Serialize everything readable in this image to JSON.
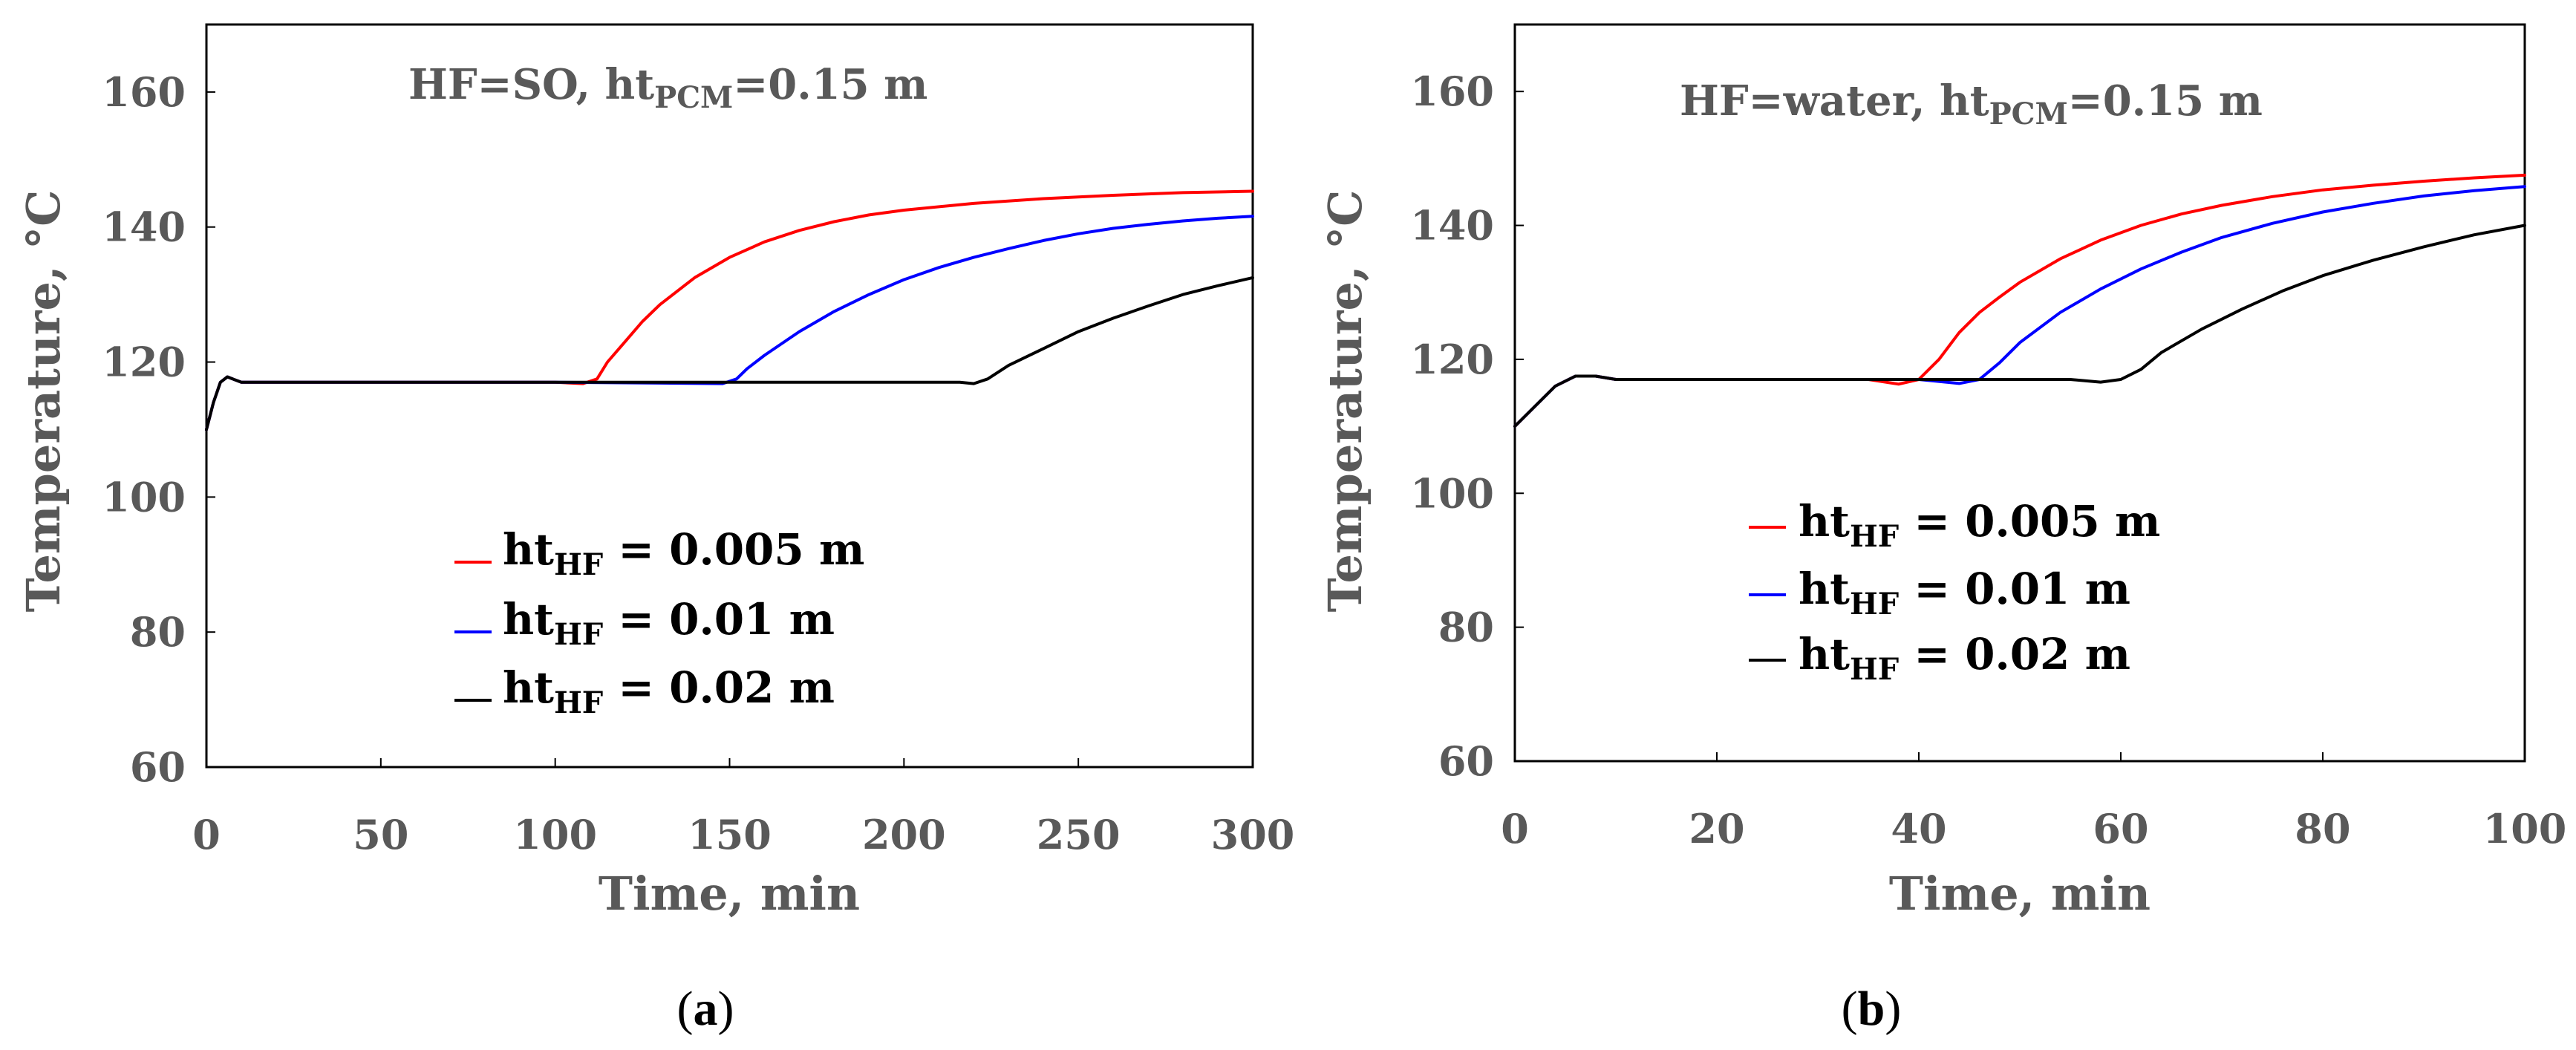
{
  "chart_data": [
    {
      "id": "a",
      "type": "line",
      "caption_open": "(",
      "caption_letter": "a",
      "caption_close": ")",
      "annotation": {
        "prefix": "HF=SO, ht",
        "sub": "PCM",
        "suffix": "=0.15 m"
      },
      "xlabel": "Time, min",
      "ylabel": "Temperature, °C",
      "xlim": [
        0,
        300
      ],
      "ylim": [
        60,
        170
      ],
      "xticks": [
        0,
        50,
        100,
        150,
        200,
        250,
        300
      ],
      "yticks": [
        60,
        80,
        100,
        120,
        140,
        160
      ],
      "legend_position": "center",
      "series": [
        {
          "name": "ht_HF = 0.005 m",
          "label_main": "ht",
          "label_sub": "HF",
          "label_rest": " = 0.005 m",
          "color": "#ff0000",
          "points": [
            [
              0,
              110
            ],
            [
              2,
              114
            ],
            [
              4,
              117
            ],
            [
              6,
              117.8
            ],
            [
              8,
              117.4
            ],
            [
              10,
              117
            ],
            [
              50,
              117
            ],
            [
              100,
              117
            ],
            [
              108,
              116.8
            ],
            [
              112,
              117.5
            ],
            [
              115,
              120
            ],
            [
              120,
              123
            ],
            [
              125,
              126
            ],
            [
              130,
              128.5
            ],
            [
              140,
              132.5
            ],
            [
              150,
              135.5
            ],
            [
              160,
              137.8
            ],
            [
              170,
              139.5
            ],
            [
              180,
              140.8
            ],
            [
              190,
              141.8
            ],
            [
              200,
              142.5
            ],
            [
              220,
              143.5
            ],
            [
              240,
              144.2
            ],
            [
              260,
              144.7
            ],
            [
              280,
              145.1
            ],
            [
              300,
              145.3
            ]
          ]
        },
        {
          "name": "ht_HF = 0.01 m",
          "label_main": "ht",
          "label_sub": "HF",
          "label_rest": " = 0.01 m",
          "color": "#0000ff",
          "points": [
            [
              0,
              110
            ],
            [
              2,
              114
            ],
            [
              4,
              117
            ],
            [
              6,
              117.8
            ],
            [
              8,
              117.4
            ],
            [
              10,
              117
            ],
            [
              50,
              117
            ],
            [
              100,
              117
            ],
            [
              148,
              116.8
            ],
            [
              152,
              117.5
            ],
            [
              155,
              119
            ],
            [
              160,
              121
            ],
            [
              170,
              124.5
            ],
            [
              180,
              127.5
            ],
            [
              190,
              130
            ],
            [
              200,
              132.2
            ],
            [
              210,
              134
            ],
            [
              220,
              135.5
            ],
            [
              230,
              136.8
            ],
            [
              240,
              138
            ],
            [
              250,
              139
            ],
            [
              260,
              139.8
            ],
            [
              270,
              140.4
            ],
            [
              280,
              140.9
            ],
            [
              290,
              141.3
            ],
            [
              300,
              141.6
            ]
          ]
        },
        {
          "name": "ht_HF = 0.02 m",
          "label_main": "ht",
          "label_sub": "HF",
          "label_rest": " = 0.02 m",
          "color": "#000000",
          "points": [
            [
              0,
              110
            ],
            [
              2,
              114
            ],
            [
              4,
              117
            ],
            [
              6,
              117.8
            ],
            [
              8,
              117.4
            ],
            [
              10,
              117
            ],
            [
              50,
              117
            ],
            [
              100,
              117
            ],
            [
              150,
              117
            ],
            [
              200,
              117
            ],
            [
              216,
              117
            ],
            [
              220,
              116.8
            ],
            [
              224,
              117.5
            ],
            [
              230,
              119.5
            ],
            [
              240,
              122
            ],
            [
              250,
              124.5
            ],
            [
              260,
              126.5
            ],
            [
              270,
              128.3
            ],
            [
              280,
              130
            ],
            [
              290,
              131.3
            ],
            [
              300,
              132.5
            ]
          ]
        }
      ]
    },
    {
      "id": "b",
      "type": "line",
      "caption_open": "(",
      "caption_letter": "b",
      "caption_close": ")",
      "annotation": {
        "prefix": "HF=water, ht",
        "sub": "PCM",
        "suffix": "=0.15 m"
      },
      "xlabel": "Time, min",
      "ylabel": "Temperature, °C",
      "xlim": [
        0,
        100
      ],
      "ylim": [
        60,
        170
      ],
      "xticks": [
        0,
        20,
        40,
        60,
        80,
        100
      ],
      "yticks": [
        60,
        80,
        100,
        120,
        140,
        160
      ],
      "legend_position": "center-left",
      "series": [
        {
          "name": "ht_HF = 0.005 m",
          "label_main": "ht",
          "label_sub": "HF",
          "label_rest": " = 0.005 m",
          "color": "#ff0000",
          "points": [
            [
              0,
              110
            ],
            [
              2,
              113
            ],
            [
              4,
              116
            ],
            [
              6,
              117.5
            ],
            [
              8,
              117.5
            ],
            [
              10,
              117
            ],
            [
              20,
              117
            ],
            [
              30,
              117
            ],
            [
              35,
              117
            ],
            [
              38,
              116.3
            ],
            [
              40,
              117
            ],
            [
              42,
              120
            ],
            [
              44,
              124
            ],
            [
              46,
              127
            ],
            [
              48,
              129.3
            ],
            [
              50,
              131.5
            ],
            [
              54,
              135
            ],
            [
              58,
              137.8
            ],
            [
              62,
              140
            ],
            [
              66,
              141.7
            ],
            [
              70,
              143
            ],
            [
              75,
              144.3
            ],
            [
              80,
              145.3
            ],
            [
              85,
              146
            ],
            [
              90,
              146.6
            ],
            [
              95,
              147.1
            ],
            [
              100,
              147.5
            ]
          ]
        },
        {
          "name": "ht_HF = 0.01 m",
          "label_main": "ht",
          "label_sub": "HF",
          "label_rest": " = 0.01 m",
          "color": "#0000ff",
          "points": [
            [
              0,
              110
            ],
            [
              2,
              113
            ],
            [
              4,
              116
            ],
            [
              6,
              117.5
            ],
            [
              8,
              117.5
            ],
            [
              10,
              117
            ],
            [
              20,
              117
            ],
            [
              30,
              117
            ],
            [
              40,
              117
            ],
            [
              44,
              116.4
            ],
            [
              46,
              117
            ],
            [
              48,
              119.5
            ],
            [
              50,
              122.5
            ],
            [
              54,
              127
            ],
            [
              58,
              130.5
            ],
            [
              62,
              133.5
            ],
            [
              66,
              136
            ],
            [
              70,
              138.2
            ],
            [
              75,
              140.3
            ],
            [
              80,
              142
            ],
            [
              85,
              143.3
            ],
            [
              90,
              144.4
            ],
            [
              95,
              145.2
            ],
            [
              100,
              145.8
            ]
          ]
        },
        {
          "name": "ht_HF = 0.02 m",
          "label_main": "ht",
          "label_sub": "HF",
          "label_rest": " = 0.02 m",
          "color": "#000000",
          "points": [
            [
              0,
              110
            ],
            [
              2,
              113
            ],
            [
              4,
              116
            ],
            [
              6,
              117.5
            ],
            [
              8,
              117.5
            ],
            [
              10,
              117
            ],
            [
              20,
              117
            ],
            [
              40,
              117
            ],
            [
              55,
              117
            ],
            [
              58,
              116.6
            ],
            [
              60,
              117
            ],
            [
              62,
              118.5
            ],
            [
              64,
              121
            ],
            [
              68,
              124.5
            ],
            [
              72,
              127.5
            ],
            [
              76,
              130.2
            ],
            [
              80,
              132.5
            ],
            [
              85,
              134.8
            ],
            [
              90,
              136.8
            ],
            [
              95,
              138.6
            ],
            [
              100,
              140
            ]
          ]
        }
      ]
    }
  ]
}
